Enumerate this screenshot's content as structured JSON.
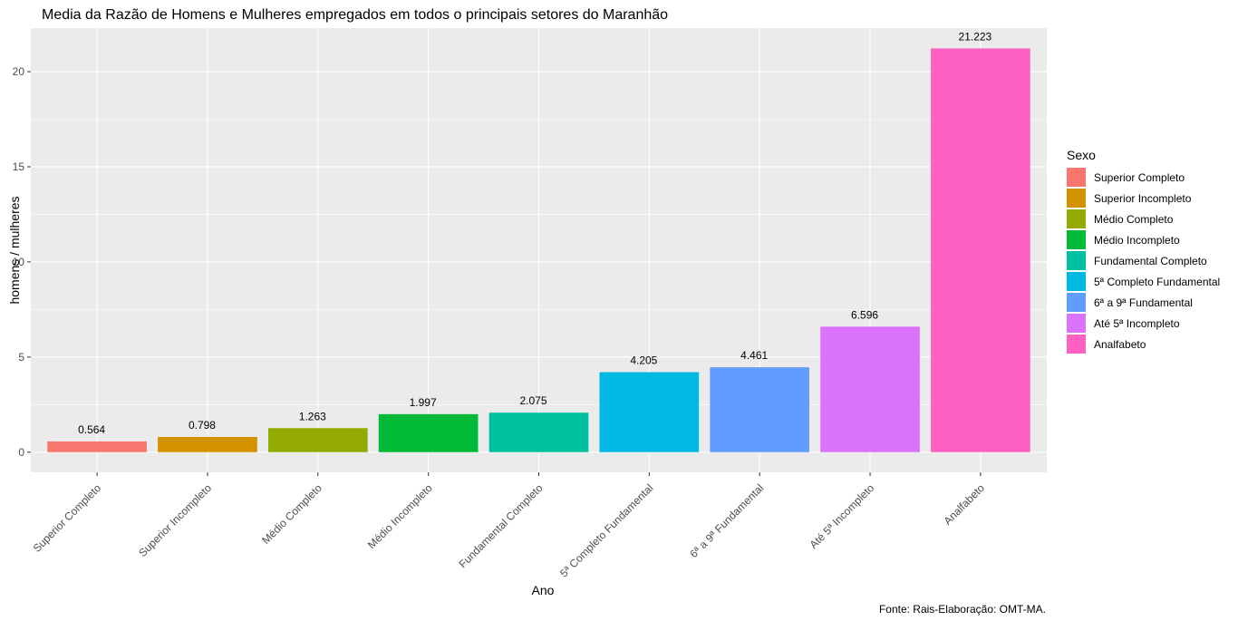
{
  "chart_data": {
    "type": "bar",
    "title": "Media da Razão de Homens e Mulheres empregados em todos o principais setores do Maranhão",
    "xlabel": "Ano",
    "ylabel": "homens / mulheres",
    "caption": "Fonte: Rais-Elaboração: OMT-MA.",
    "categories": [
      "Superior Completo",
      "Superior Incompleto",
      "Médio Completo",
      "Médio Incompleto",
      "Fundamental Completo",
      "5ª Completo Fundamental",
      "6ª a 9ª Fundamental",
      "Até 5ª Incompleto",
      "Analfabeto"
    ],
    "values": [
      0.564,
      0.798,
      1.263,
      1.997,
      2.075,
      4.205,
      4.461,
      6.596,
      21.223
    ],
    "value_labels": [
      "0.564",
      "0.798",
      "1.263",
      "1.997",
      "2.075",
      "4.205",
      "4.461",
      "6.596",
      "21.223"
    ],
    "colors": [
      "#F8766D",
      "#D39200",
      "#93AA00",
      "#00BA38",
      "#00C19F",
      "#00B9E3",
      "#619CFF",
      "#DB72FB",
      "#FF61C3"
    ],
    "ylim": [
      -1.06,
      22.29
    ],
    "yticks": [
      0,
      5,
      10,
      15,
      20
    ],
    "ytick_labels": [
      "0",
      "5",
      "10",
      "15",
      "20"
    ],
    "grid": true,
    "legend": {
      "title": "Sexo",
      "position": "right",
      "entries": [
        "Superior Completo",
        "Superior Incompleto",
        "Médio Completo",
        "Médio Incompleto",
        "Fundamental Completo",
        "5ª Completo Fundamental",
        "6ª a 9ª Fundamental",
        "Até 5ª Incompleto",
        "Analfabeto"
      ]
    },
    "background": "#EBEBEB",
    "grid_color": "#FFFFFF"
  }
}
